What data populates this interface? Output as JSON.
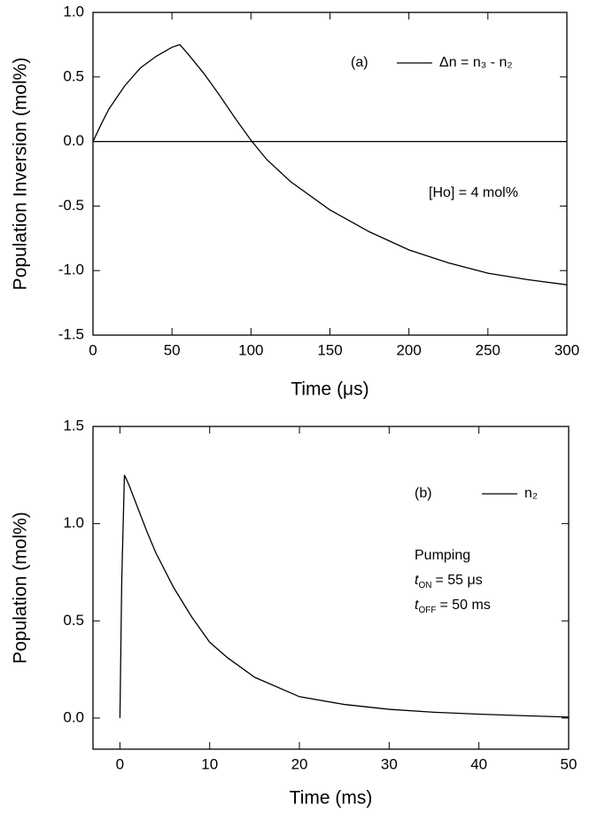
{
  "chart_data": [
    {
      "type": "line",
      "xlabel": "Time (μs)",
      "ylabel": "Population Inversion (mol%)",
      "xlim": [
        0,
        300
      ],
      "xticks": [
        0,
        50,
        100,
        150,
        200,
        250,
        300
      ],
      "ylim": [
        -1.5,
        1
      ],
      "yticks": [
        {
          "value": -1.5,
          "label": "-1.5"
        },
        {
          "value": -1,
          "label": "-1.0"
        },
        -0.5,
        {
          "value": 0,
          "label": "0.0"
        },
        0.5,
        {
          "value": 1,
          "label": "1.0"
        }
      ],
      "hlines": [
        0
      ],
      "annotations": [
        "(a)",
        "[Ho] = 4 mol%"
      ],
      "series": [
        {
          "name": "Δn = n₃ - n₂",
          "color": "#000000",
          "x": [
            0,
            5,
            10,
            20,
            30,
            40,
            50,
            55,
            60,
            70,
            80,
            90,
            100,
            110,
            125,
            150,
            175,
            200,
            225,
            250,
            275,
            300
          ],
          "values": [
            0,
            0.13,
            0.25,
            0.43,
            0.57,
            0.66,
            0.73,
            0.75,
            0.68,
            0.53,
            0.36,
            0.18,
            0.01,
            -0.14,
            -0.31,
            -0.53,
            -0.7,
            -0.84,
            -0.94,
            -1.02,
            -1.07,
            -1.11
          ]
        }
      ]
    },
    {
      "type": "line",
      "xlabel": "Time (ms)",
      "ylabel": "Population (mol%)",
      "xlim": [
        -3,
        50
      ],
      "xticks": [
        0,
        10,
        20,
        30,
        40,
        50
      ],
      "ylim": [
        -0.16,
        1.5
      ],
      "yticks": [
        {
          "value": 0,
          "label": "0.0"
        },
        0.5,
        {
          "value": 1,
          "label": "1.0"
        },
        1.5
      ],
      "annotations": [
        "(b)",
        "Pumping",
        {
          "symbol": "t",
          "subscript": "ON",
          "text": "= 55 μs"
        },
        {
          "symbol": "t",
          "subscript": "OFF",
          "text": "= 50 ms"
        }
      ],
      "series": [
        {
          "name": "n₂",
          "color": "#000000",
          "x": [
            0,
            0.2,
            0.5,
            1,
            2,
            3,
            4,
            5,
            6,
            8,
            10,
            12,
            15,
            20,
            25,
            30,
            35,
            40,
            45,
            50
          ],
          "values": [
            0,
            0.7,
            1.25,
            1.2,
            1.08,
            0.96,
            0.85,
            0.76,
            0.67,
            0.52,
            0.39,
            0.31,
            0.21,
            0.11,
            0.07,
            0.045,
            0.03,
            0.02,
            0.012,
            0.005
          ]
        }
      ]
    }
  ]
}
